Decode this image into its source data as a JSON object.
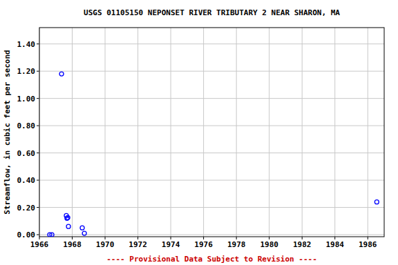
{
  "chart_data": {
    "type": "scatter",
    "title": "USGS 01105150 NEPONSET RIVER TRIBUTARY 2 NEAR SHARON, MA",
    "y_label": "Streamflow, in cubic feet per second",
    "annotations": [
      "---- Provisional Data Subject to Revision ----"
    ],
    "x": [
      1966.63,
      1966.76,
      1967.35,
      1967.64,
      1967.68,
      1967.73,
      1967.77,
      1968.61,
      1968.74,
      1986.55
    ],
    "values": [
      0.0,
      0.0,
      1.18,
      0.14,
      0.12,
      0.125,
      0.06,
      0.05,
      0.01,
      0.24
    ],
    "color": "#0000ff",
    "marker": "open_circle",
    "xlim": [
      1966,
      1987
    ],
    "xticks": [
      1966,
      1968,
      1970,
      1972,
      1974,
      1976,
      1978,
      1980,
      1982,
      1984,
      1986
    ],
    "ylim": [
      -0.015,
      1.52
    ],
    "yticks": [
      {
        "value": 0,
        "label": "0.00"
      },
      {
        "value": 0.2,
        "label": "0.20"
      },
      {
        "value": 0.4,
        "label": "0.40"
      },
      {
        "value": 0.6,
        "label": "0.60"
      },
      {
        "value": 0.8,
        "label": "0.80"
      },
      {
        "value": 1.0,
        "label": "1.00"
      },
      {
        "value": 1.2,
        "label": "1.20"
      },
      {
        "value": 1.4,
        "label": "1.40"
      }
    ],
    "grid": true
  }
}
